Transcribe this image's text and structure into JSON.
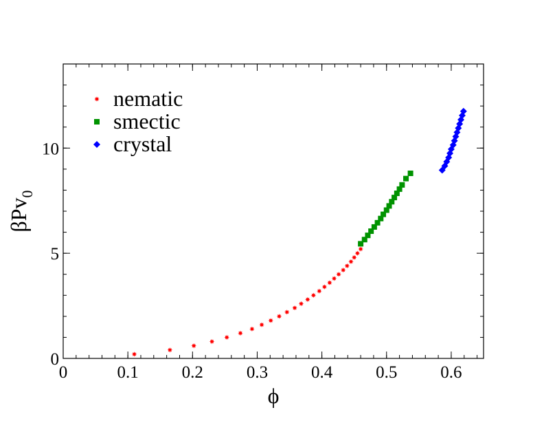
{
  "chart_data": {
    "type": "scatter",
    "title": "",
    "xlabel": "ϕ",
    "ylabel": {
      "main": "βPv",
      "sub": "0"
    },
    "xlim": [
      0,
      0.65
    ],
    "ylim": [
      0,
      14
    ],
    "x_ticks": [
      0,
      0.1,
      0.2,
      0.3,
      0.4,
      0.5,
      0.6
    ],
    "x_tick_labels": [
      "0",
      "0.1",
      "0.2",
      "0.3",
      "0.4",
      "0.5",
      "0.6"
    ],
    "y_ticks": [
      0,
      5,
      10
    ],
    "y_tick_labels": [
      "0",
      "5",
      "10"
    ],
    "grid": false,
    "legend_position": "top-left",
    "series": [
      {
        "name": "nematic",
        "marker": "star",
        "color": "#ff0000",
        "points": [
          [
            0.11,
            0.2
          ],
          [
            0.165,
            0.4
          ],
          [
            0.202,
            0.6
          ],
          [
            0.23,
            0.8
          ],
          [
            0.253,
            1.0
          ],
          [
            0.274,
            1.2
          ],
          [
            0.292,
            1.4
          ],
          [
            0.307,
            1.6
          ],
          [
            0.321,
            1.8
          ],
          [
            0.334,
            2.0
          ],
          [
            0.346,
            2.2
          ],
          [
            0.358,
            2.4
          ],
          [
            0.368,
            2.6
          ],
          [
            0.378,
            2.8
          ],
          [
            0.387,
            3.0
          ],
          [
            0.396,
            3.2
          ],
          [
            0.404,
            3.4
          ],
          [
            0.412,
            3.6
          ],
          [
            0.419,
            3.8
          ],
          [
            0.426,
            4.0
          ],
          [
            0.433,
            4.2
          ],
          [
            0.439,
            4.4
          ],
          [
            0.445,
            4.6
          ],
          [
            0.45,
            4.8
          ],
          [
            0.455,
            5.0
          ],
          [
            0.46,
            5.2
          ]
        ]
      },
      {
        "name": "smectic",
        "marker": "square",
        "color": "#009300",
        "points": [
          [
            0.46,
            5.45
          ],
          [
            0.466,
            5.65
          ],
          [
            0.471,
            5.85
          ],
          [
            0.476,
            6.05
          ],
          [
            0.481,
            6.25
          ],
          [
            0.486,
            6.45
          ],
          [
            0.491,
            6.65
          ],
          [
            0.495,
            6.85
          ],
          [
            0.5,
            7.05
          ],
          [
            0.504,
            7.25
          ],
          [
            0.508,
            7.45
          ],
          [
            0.512,
            7.65
          ],
          [
            0.516,
            7.85
          ],
          [
            0.52,
            8.05
          ],
          [
            0.524,
            8.25
          ],
          [
            0.53,
            8.55
          ],
          [
            0.537,
            8.8
          ]
        ]
      },
      {
        "name": "crystal",
        "marker": "diamond",
        "color": "#0000ff",
        "points": [
          [
            0.586,
            8.95
          ],
          [
            0.59,
            9.15
          ],
          [
            0.593,
            9.35
          ],
          [
            0.596,
            9.55
          ],
          [
            0.598,
            9.75
          ],
          [
            0.6,
            9.95
          ],
          [
            0.603,
            10.15
          ],
          [
            0.605,
            10.35
          ],
          [
            0.607,
            10.55
          ],
          [
            0.609,
            10.75
          ],
          [
            0.611,
            10.95
          ],
          [
            0.613,
            11.15
          ],
          [
            0.615,
            11.35
          ],
          [
            0.617,
            11.55
          ],
          [
            0.619,
            11.75
          ]
        ]
      }
    ]
  }
}
